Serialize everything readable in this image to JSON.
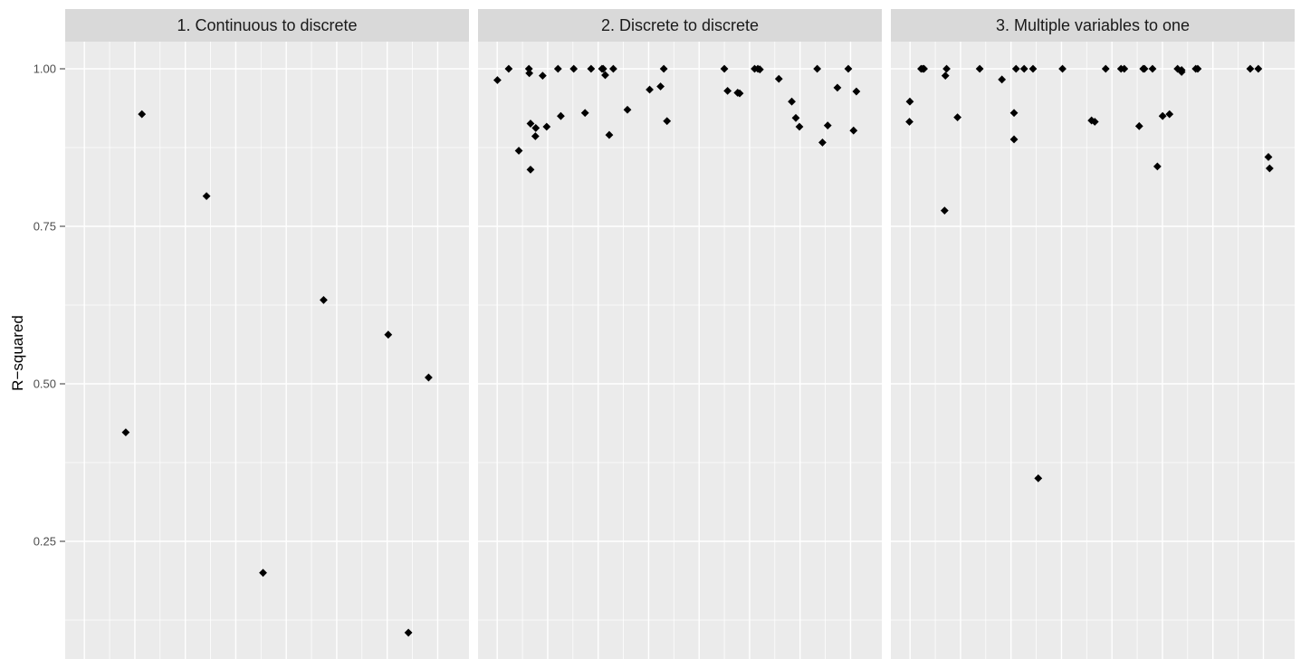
{
  "chart_data": {
    "type": "scatter",
    "ylabel": "R−squared",
    "ylim": [
      0.08,
      1.04
    ],
    "yticks": [
      0.25,
      0.5,
      0.75,
      1.0
    ],
    "ytick_labels": [
      "0.25",
      "0.50",
      "0.75",
      "1.00"
    ],
    "grid": true,
    "legend": "none",
    "panel_background": "#ebebeb",
    "strip_background": "#d9d9d9",
    "grid_color": "#ffffff",
    "point_color": "#000000",
    "point_shape": "diamond",
    "panels": [
      {
        "title": "1. Continuous to discrete",
        "x": [
          0.15,
          0.19,
          0.35,
          0.49,
          0.64,
          0.8,
          0.85,
          0.9
        ],
        "y": [
          0.423,
          0.928,
          0.798,
          0.2,
          0.633,
          0.578,
          0.105,
          0.51
        ]
      },
      {
        "title": "2. Discrete to discrete",
        "x": [
          0.048,
          0.076,
          0.101,
          0.126,
          0.127,
          0.13,
          0.13,
          0.142,
          0.143,
          0.16,
          0.17,
          0.198,
          0.205,
          0.237,
          0.265,
          0.28,
          0.307,
          0.31,
          0.315,
          0.325,
          0.335,
          0.37,
          0.425,
          0.452,
          0.46,
          0.468,
          0.61,
          0.618,
          0.643,
          0.648,
          0.685,
          0.693,
          0.698,
          0.745,
          0.777,
          0.787,
          0.796,
          0.84,
          0.853,
          0.866,
          0.89,
          0.917,
          0.937,
          0.93
        ],
        "y": [
          0.982,
          1.0,
          0.87,
          1.0,
          0.993,
          0.913,
          0.84,
          0.893,
          0.906,
          0.989,
          0.908,
          1.0,
          0.925,
          1.0,
          0.93,
          1.0,
          1.0,
          1.0,
          0.99,
          0.895,
          1.0,
          0.935,
          0.967,
          0.972,
          1.0,
          0.917,
          1.0,
          0.965,
          0.962,
          0.961,
          1.0,
          1.0,
          0.999,
          0.984,
          0.948,
          0.922,
          0.908,
          1.0,
          0.883,
          0.91,
          0.97,
          1.0,
          0.964,
          0.902
        ]
      },
      {
        "title": "3. Multiple variables to one",
        "x": [
          0.047,
          0.046,
          0.075,
          0.079,
          0.082,
          0.133,
          0.135,
          0.138,
          0.165,
          0.22,
          0.275,
          0.305,
          0.305,
          0.31,
          0.33,
          0.352,
          0.365,
          0.425,
          0.497,
          0.505,
          0.532,
          0.57,
          0.578,
          0.615,
          0.625,
          0.628,
          0.648,
          0.66,
          0.673,
          0.69,
          0.71,
          0.72,
          0.72,
          0.755,
          0.76,
          0.89,
          0.91,
          0.935,
          0.938
        ],
        "y": [
          0.948,
          0.916,
          1.0,
          1.0,
          1.0,
          0.775,
          0.989,
          1.0,
          0.923,
          1.0,
          0.983,
          0.93,
          0.888,
          1.0,
          1.0,
          1.0,
          0.35,
          1.0,
          0.918,
          0.916,
          1.0,
          1.0,
          1.0,
          0.909,
          1.0,
          1.0,
          1.0,
          0.845,
          0.925,
          0.928,
          1.0,
          0.998,
          0.995,
          1.0,
          1.0,
          1.0,
          1.0,
          0.86,
          0.842
        ]
      }
    ]
  }
}
